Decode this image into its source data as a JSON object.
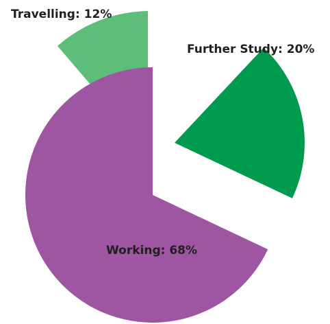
{
  "chart_data": {
    "type": "pie",
    "title": "",
    "slices": [
      {
        "label": "Travelling: 12%",
        "name": "Travelling",
        "value": 12,
        "color": "#5cbe78"
      },
      {
        "label": "Further Study: 20%",
        "name": "Further Study",
        "value": 20,
        "color": "#009b4e"
      },
      {
        "label": "Working: 68%",
        "name": "Working",
        "value": 68,
        "color": "#9e55a2"
      }
    ],
    "legend": "none",
    "exploded": true,
    "start_angle_deg": 0,
    "direction": "clockwise"
  }
}
